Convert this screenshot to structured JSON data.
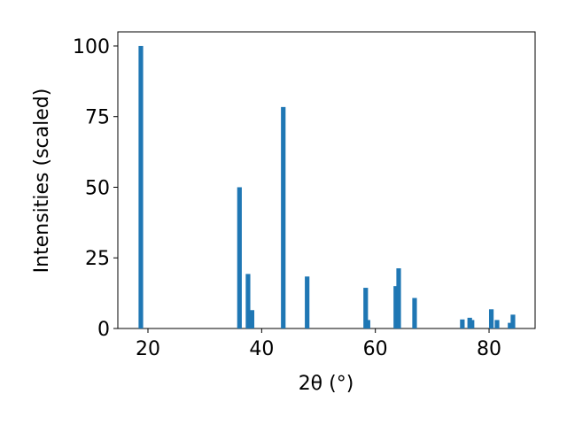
{
  "chart_data": {
    "type": "bar",
    "xlabel": "2θ (°)",
    "ylabel": "Intensities (scaled)",
    "x": [
      18.75,
      36.1,
      37.6,
      38.3,
      43.8,
      48.0,
      58.3,
      58.7,
      63.6,
      64.1,
      66.9,
      75.3,
      76.6,
      77.0,
      80.4,
      81.4,
      83.7,
      84.2
    ],
    "values": [
      100,
      50,
      19.3,
      6.5,
      78.4,
      18.4,
      14.4,
      3,
      15,
      21.3,
      10.8,
      3.2,
      3.8,
      3,
      6.8,
      3,
      2,
      4.9
    ],
    "color": "#1f77b4",
    "xlim": [
      14.7,
      88.1
    ],
    "xticks": [
      20,
      40,
      60,
      80
    ],
    "ylim": [
      0,
      105
    ],
    "yticks": [
      0,
      25,
      50,
      75,
      100
    ],
    "grid": false
  }
}
